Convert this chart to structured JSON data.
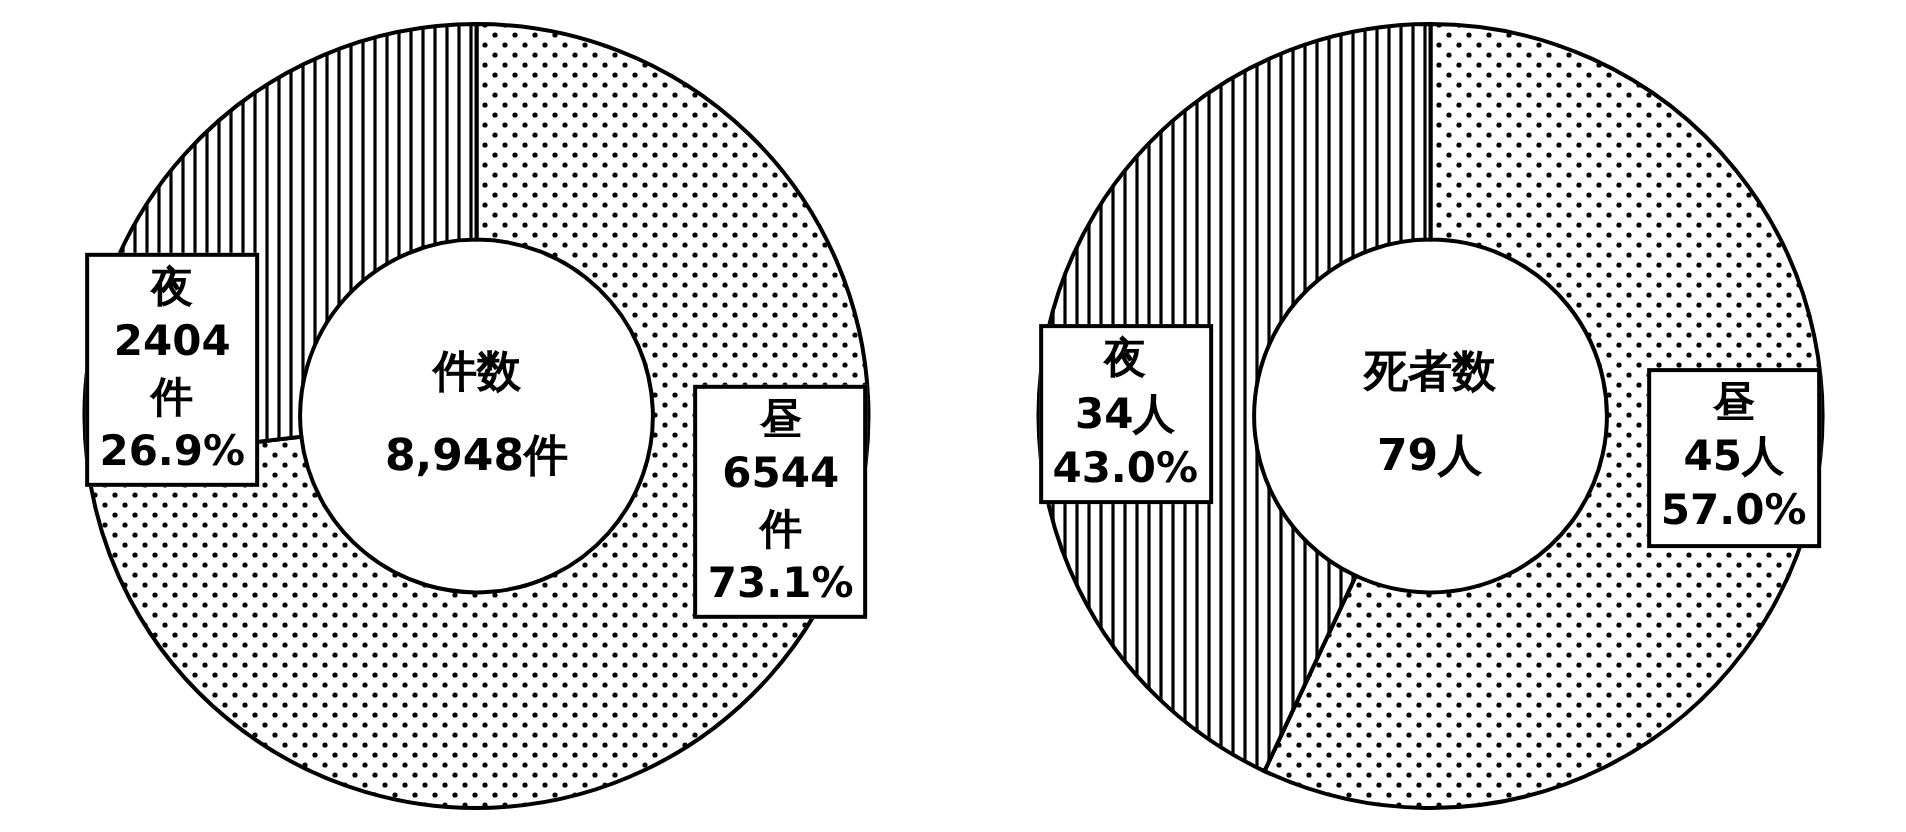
{
  "chart_data": [
    {
      "type": "donut",
      "title": "件数",
      "subtitle": "8,948件",
      "categories": [
        "昼",
        "夜"
      ],
      "values": [
        6544,
        2404
      ],
      "value_labels": [
        "6544件",
        "2404件"
      ],
      "annotations": [
        {
          "text": "73.1%",
          "x": "昼"
        },
        {
          "text": "26.9%",
          "x": "夜"
        }
      ]
    },
    {
      "type": "donut",
      "title": "死者数",
      "subtitle": "79人",
      "categories": [
        "昼",
        "夜"
      ],
      "values": [
        45,
        34
      ],
      "value_labels": [
        "45人",
        "34人"
      ],
      "annotations": [
        {
          "text": "57.0%",
          "x": "昼"
        },
        {
          "text": "43.0%",
          "x": "夜"
        }
      ]
    }
  ]
}
